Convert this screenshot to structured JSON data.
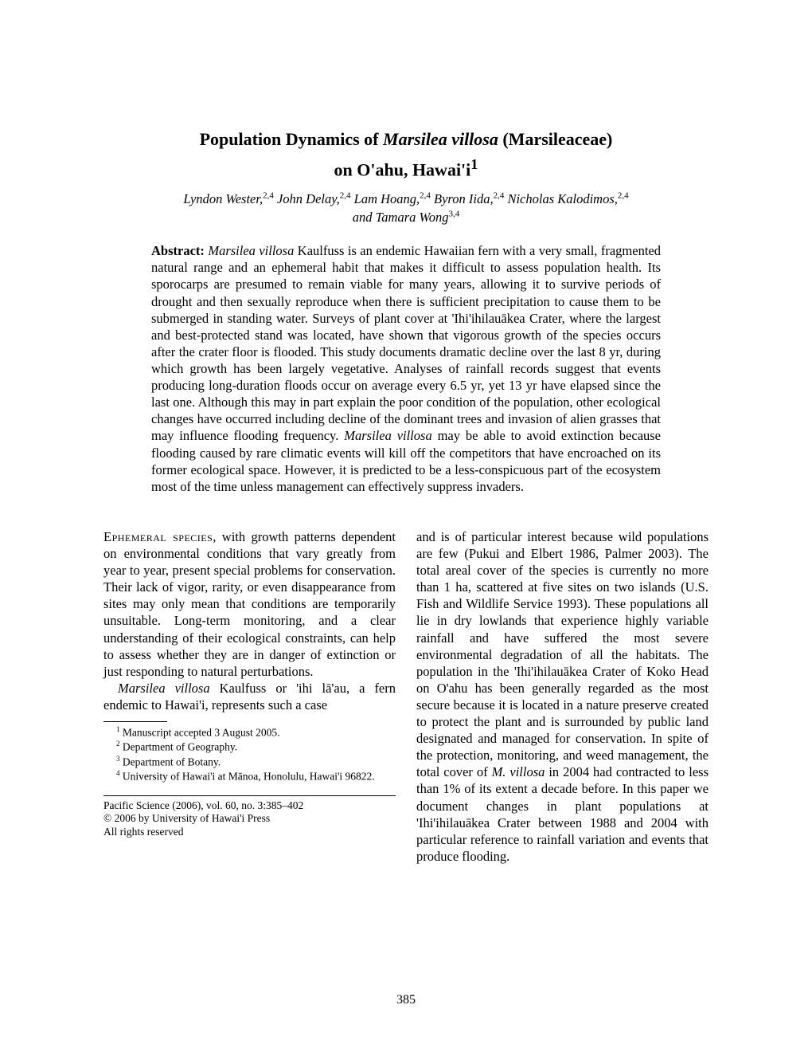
{
  "title_prefix": "Population Dynamics of ",
  "title_species": "Marsilea villosa",
  "title_suffix": " (Marsileaceae)",
  "subtitle": "on O'ahu, Hawai'i",
  "title_footnote_marker": "1",
  "authors_line1": "Lyndon Wester,",
  "authors_a1_sup": "2,4",
  "authors_a2": " John Delay,",
  "authors_a2_sup": "2,4",
  "authors_a3": " Lam Hoang,",
  "authors_a3_sup": "2,4",
  "authors_a4": " Byron Iida,",
  "authors_a4_sup": "2,4",
  "authors_a5": " Nicholas Kalodimos,",
  "authors_a5_sup": "2,4",
  "authors_line2": "and Tamara Wong",
  "authors_a6_sup": "3,4",
  "abstract_label": "Abstract:",
  "abstract_species": " Marsilea villosa ",
  "abstract_text1": "Kaulfuss is an endemic Hawaiian fern with a very small, fragmented natural range and an ephemeral habit that makes it difficult to assess population health. Its sporocarps are presumed to remain viable for many years, allowing it to survive periods of drought and then sexually reproduce when there is sufficient precipitation to cause them to be submerged in standing water. Surveys of plant cover at 'Ihi'ihilauākea Crater, where the largest and best-protected stand was located, have shown that vigorous growth of the species occurs after the crater floor is flooded. This study documents dramatic decline over the last 8 yr, during which growth has been largely vegetative. Analyses of rainfall records suggest that events producing long-duration floods occur on average every 6.5 yr, yet 13 yr have elapsed since the last one. Although this may in part explain the poor condition of the population, other ecological changes have occurred including decline of the dominant trees and invasion of alien grasses that may influence flooding frequency. ",
  "abstract_species2": "Marsilea villosa",
  "abstract_text2": " may be able to avoid extinction because flooding caused by rare climatic events will kill off the competitors that have encroached on its former ecological space. However, it is predicted to be a less-conspicuous part of the ecosystem most of the time unless management can effectively suppress invaders.",
  "col1_lead": "Ephemeral species",
  "col1_p1": ", with growth patterns dependent on environmental conditions that vary greatly from year to year, present special problems for conservation. Their lack of vigor, rarity, or even disappearance from sites may only mean that conditions are temporarily unsuitable. Long-term monitoring, and a clear understanding of their ecological constraints, can help to assess whether they are in danger of extinction or just responding to natural perturbations.",
  "col1_p2_species": "Marsilea villosa",
  "col1_p2": " Kaulfuss or 'ihi lā'au, a fern endemic to Hawai'i, represents such a case",
  "footnote1_marker": "1",
  "footnote1": " Manuscript accepted 3 August 2005.",
  "footnote2_marker": "2",
  "footnote2": " Department of Geography.",
  "footnote3_marker": "3",
  "footnote3": " Department of Botany.",
  "footnote4_marker": "4",
  "footnote4": " University of Hawai'i at Mānoa, Honolulu, Hawai'i 96822.",
  "pubinfo1": "Pacific Science (2006), vol. 60, no. 3:385–402",
  "pubinfo2": "© 2006 by University of Hawai'i Press",
  "pubinfo3": "All rights reserved",
  "col2_p1a": "and is of particular interest because wild populations are few (Pukui and Elbert 1986, Palmer 2003). The total areal cover of the species is currently no more than 1 ha, scattered at five sites on two islands (U.S. Fish and Wildlife Service 1993). These populations all lie in dry lowlands that experience highly variable rainfall and have suffered the most severe environmental degradation of all the habitats. The population in the 'Ihi'ihilauākea Crater of Koko Head on O'ahu has been generally regarded as the most secure because it is located in a nature preserve created to protect the plant and is surrounded by public land designated and managed for conservation. In spite of the protection, monitoring, and weed management, the total cover of ",
  "col2_species": "M. villosa",
  "col2_p1b": " in 2004 had contracted to less than 1% of its extent a decade before. In this paper we document changes in plant populations at 'Ihi'ihilauākea Crater between 1988 and 2004 with particular reference to rainfall variation and events that produce flooding.",
  "page_number": "385"
}
